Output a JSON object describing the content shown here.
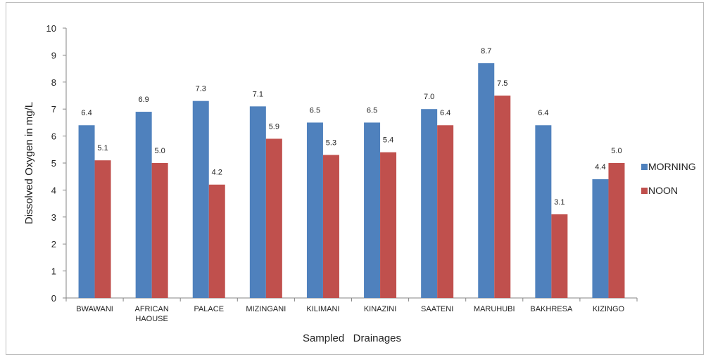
{
  "chart_data": {
    "type": "bar",
    "title": "",
    "xlabel": "Sampled   Drainages",
    "ylabel": "Dissolved Oxygen in mg/L",
    "ylim": [
      0,
      10
    ],
    "yticks": [
      0,
      1,
      2,
      3,
      4,
      5,
      6,
      7,
      8,
      9,
      10
    ],
    "grid": false,
    "legend_position": "right",
    "categories": [
      [
        "BWAWANI"
      ],
      [
        "AFRICAN",
        "HAOUSE"
      ],
      [
        "PALACE"
      ],
      [
        "MIZINGANI"
      ],
      [
        "KILIMANI"
      ],
      [
        "KINAZINI"
      ],
      [
        "SAATENI"
      ],
      [
        "MARUHUBI"
      ],
      [
        "BAKHRESA"
      ],
      [
        "KIZINGO"
      ]
    ],
    "series": [
      {
        "name": "MORNING",
        "color": "#4F81BD",
        "values": [
          6.4,
          6.9,
          7.3,
          7.1,
          6.5,
          6.5,
          7.0,
          8.7,
          6.4,
          4.4
        ],
        "labels": [
          "6.4",
          "6.9",
          "7.3",
          "7.1",
          "6.5",
          "6.5",
          "7.0",
          "8.7",
          "6.4",
          "4.4"
        ]
      },
      {
        "name": "NOON",
        "color": "#C0504D",
        "values": [
          5.1,
          5.0,
          4.2,
          5.9,
          5.3,
          5.4,
          6.4,
          7.5,
          3.1,
          5.0
        ],
        "labels": [
          "5.1",
          "5.0",
          "4.2",
          "5.9",
          "5.3",
          "5.4",
          "6.4",
          "7.5",
          "3.1",
          "5.0"
        ]
      }
    ]
  }
}
